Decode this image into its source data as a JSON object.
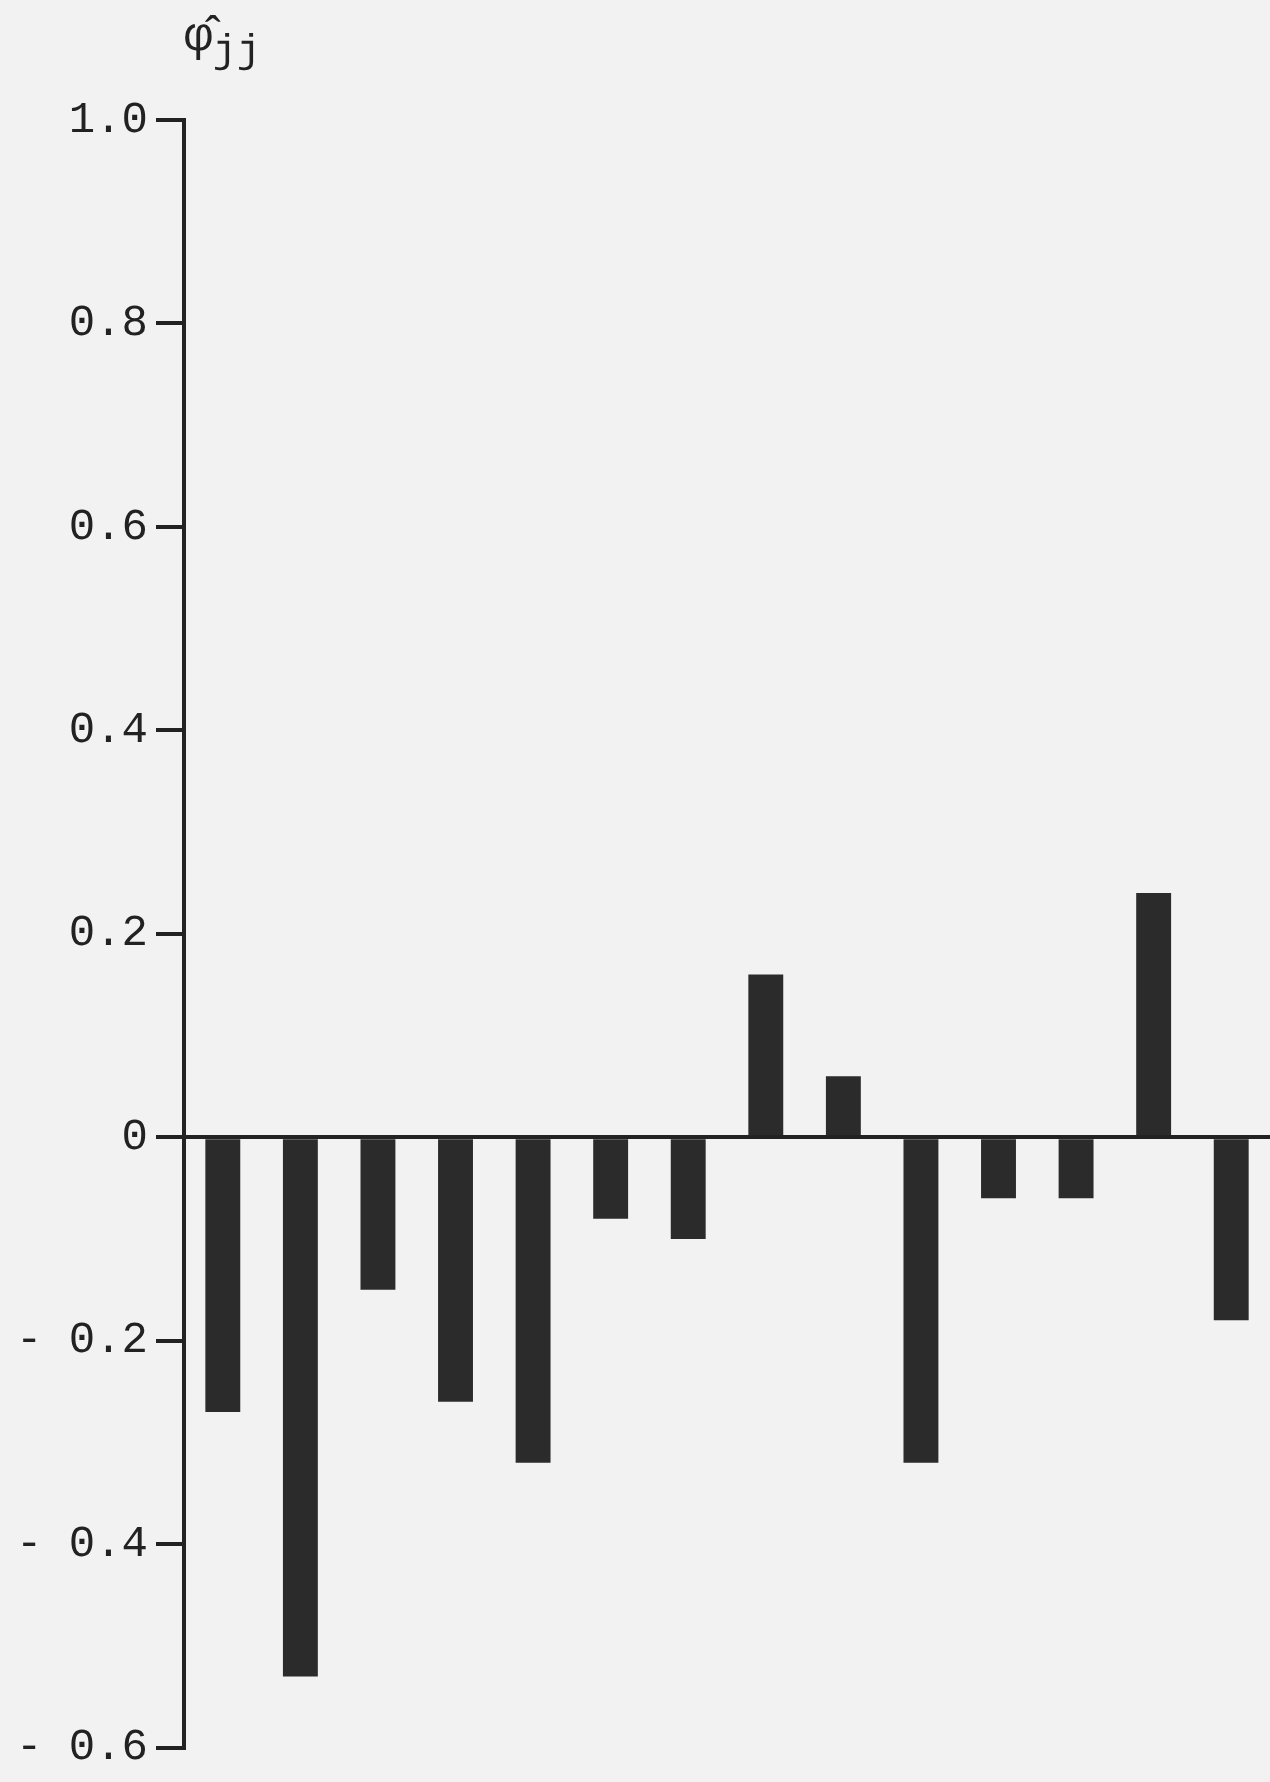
{
  "chart_data": {
    "type": "bar",
    "ylabel": "φ̂$_{jj}$",
    "categories": [
      null,
      null,
      null,
      null,
      null,
      null,
      null,
      null,
      null,
      null,
      null,
      null,
      null,
      null
    ],
    "values": [
      -0.27,
      -0.53,
      -0.15,
      -0.26,
      -0.32,
      -0.08,
      -0.1,
      0.16,
      0.06,
      -0.32,
      -0.06,
      -0.06,
      0.24,
      -0.18
    ],
    "color": "#2b2b2b",
    "ylim": [
      -0.6,
      1.0
    ],
    "yticks": [
      {
        "value": -0.6,
        "label": "- 0.6"
      },
      {
        "value": -0.4,
        "label": "- 0.4"
      },
      {
        "value": -0.2,
        "label": "- 0.2"
      },
      0,
      0.2,
      0.4,
      0.6,
      0.8,
      {
        "value": 1,
        "label": "1.0"
      }
    ],
    "tick_labels": "y"
  }
}
